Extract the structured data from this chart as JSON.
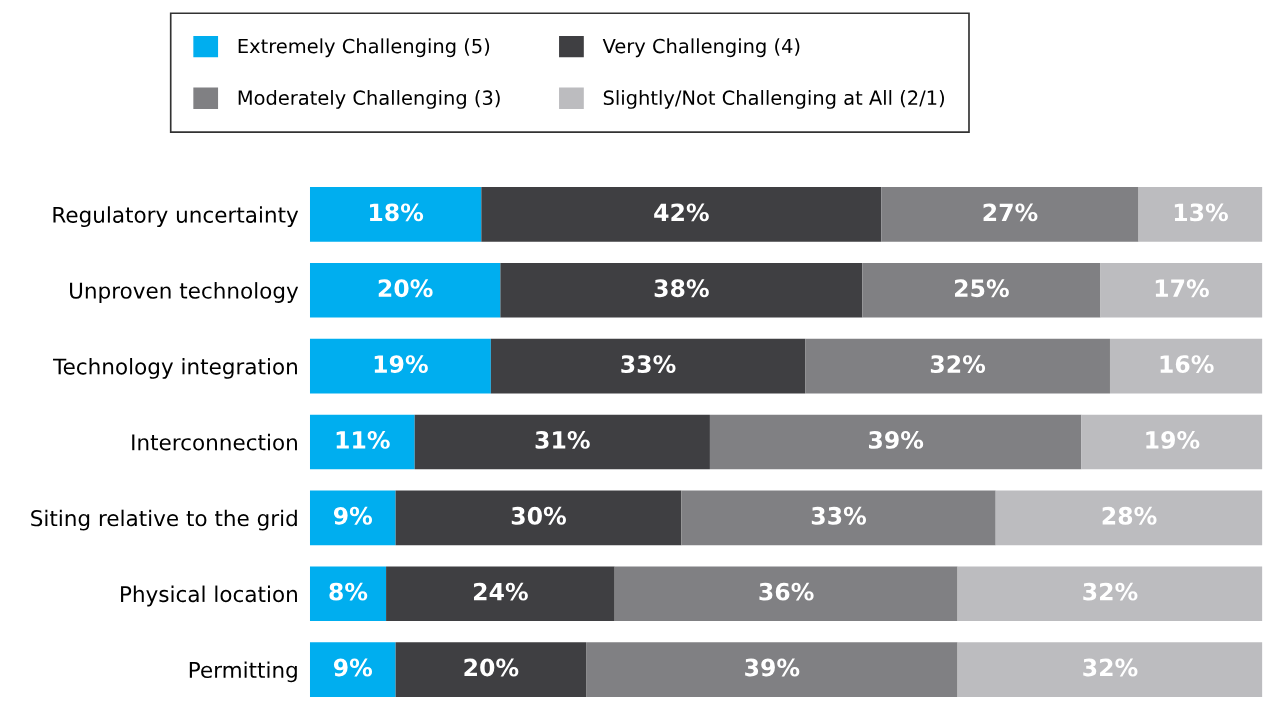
{
  "chart_data": {
    "type": "bar",
    "orientation": "horizontal",
    "stacked": true,
    "legend": "top",
    "tick_labels": "y",
    "grid": false,
    "categories": [
      "Regulatory uncertainty",
      "Unproven technology",
      "Technology integration",
      "Interconnection",
      "Siting relative to the grid",
      "Physical location",
      "Permitting"
    ],
    "series": [
      {
        "name": "Extremely Challenging (5)",
        "color": "#00aeef",
        "values": [
          18,
          20,
          19,
          11,
          9,
          8,
          9
        ],
        "value_labels": [
          "18%",
          "20%",
          "19%",
          "11%",
          "9%",
          "8%",
          "9%"
        ]
      },
      {
        "name": "Very Challenging (4)",
        "color": "#3f3f42",
        "values": [
          42,
          38,
          33,
          31,
          30,
          24,
          20
        ],
        "value_labels": [
          "42%",
          "38%",
          "33%",
          "31%",
          "30%",
          "24%",
          "20%"
        ]
      },
      {
        "name": "Moderately Challenging (3)",
        "color": "#808083",
        "values": [
          27,
          25,
          32,
          39,
          33,
          36,
          39
        ],
        "value_labels": [
          "27%",
          "25%",
          "32%",
          "39%",
          "33%",
          "36%",
          "39%"
        ]
      },
      {
        "name": "Slightly/Not Challenging at All (2/1)",
        "color": "#bcbcbf",
        "values": [
          13,
          17,
          16,
          19,
          28,
          32,
          32
        ],
        "value_labels": [
          "13%",
          "17%",
          "16%",
          "19%",
          "28%",
          "32%",
          "32%"
        ]
      }
    ]
  }
}
